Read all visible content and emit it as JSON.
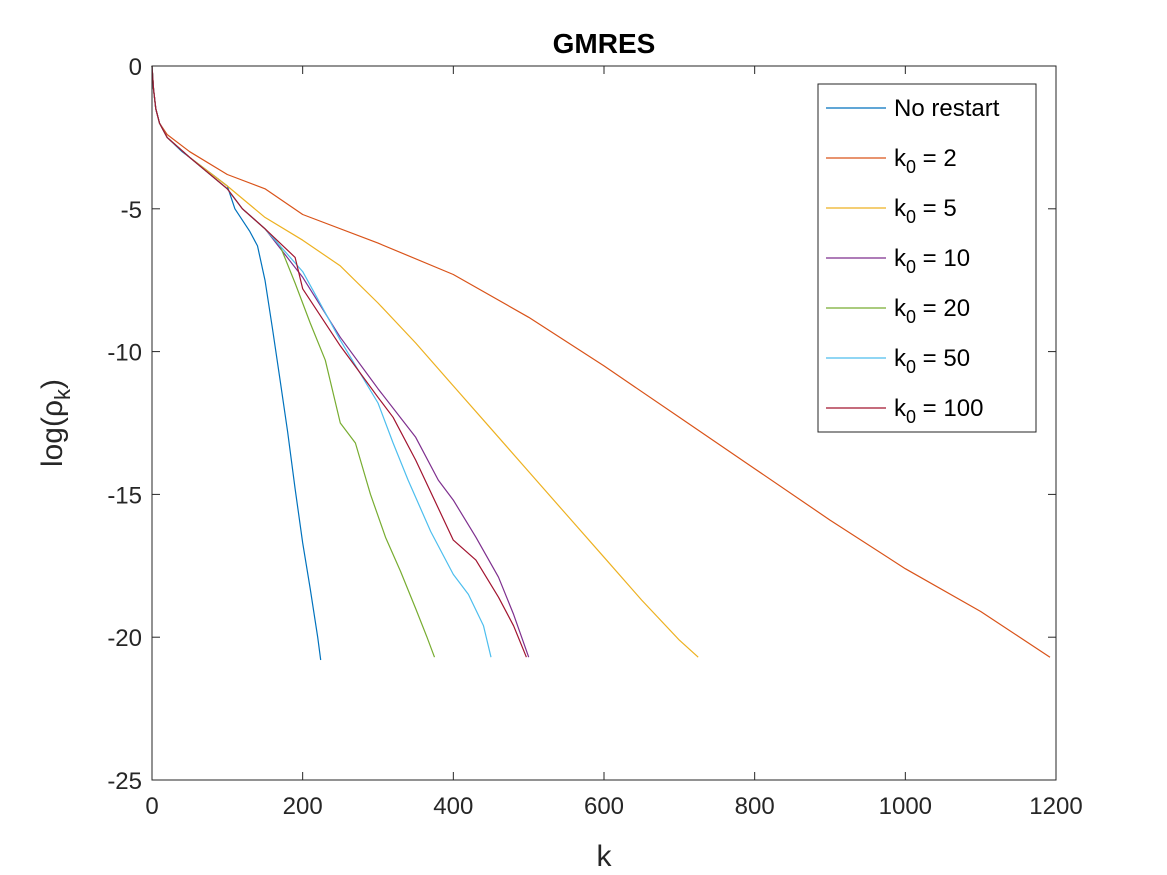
{
  "chart_data": {
    "type": "line",
    "title": "GMRES",
    "xlabel": "k",
    "ylabel": "log(ρ_k)",
    "xlim": [
      0,
      1200
    ],
    "ylim": [
      -25,
      0
    ],
    "xticks": [
      "0",
      "200",
      "400",
      "600",
      "800",
      "1000",
      "1200"
    ],
    "yticks": [
      "0",
      "-5",
      "-10",
      "-15",
      "-20",
      "-25"
    ],
    "legend_position": "top-right",
    "grid": false,
    "series": [
      {
        "name": "No restart",
        "color": "#0072bd",
        "x": [
          0,
          2,
          5,
          10,
          20,
          40,
          60,
          80,
          100,
          110,
          120,
          130,
          140,
          150,
          160,
          170,
          180,
          190,
          200,
          210,
          220,
          224
        ],
        "y": [
          0,
          -0.8,
          -1.5,
          -2.0,
          -2.5,
          -3.0,
          -3.4,
          -3.8,
          -4.2,
          -5.0,
          -5.4,
          -5.8,
          -6.3,
          -7.5,
          -9.2,
          -11.0,
          -12.8,
          -14.8,
          -16.7,
          -18.3,
          -20.0,
          -20.8
        ]
      },
      {
        "name": "k_0 = 2",
        "label_base": "k",
        "label_sub": "0",
        "label_rest": " = 2",
        "color": "#d95319",
        "x": [
          0,
          2,
          5,
          10,
          20,
          50,
          100,
          150,
          200,
          300,
          400,
          500,
          600,
          700,
          800,
          900,
          1000,
          1100,
          1192
        ],
        "y": [
          0,
          -0.8,
          -1.5,
          -2.0,
          -2.4,
          -3.0,
          -3.8,
          -4.3,
          -5.2,
          -6.2,
          -7.3,
          -8.8,
          -10.5,
          -12.3,
          -14.1,
          -15.9,
          -17.6,
          -19.1,
          -20.7
        ]
      },
      {
        "name": "k_0 = 5",
        "label_base": "k",
        "label_sub": "0",
        "label_rest": " = 5",
        "color": "#edb120",
        "x": [
          0,
          2,
          5,
          10,
          20,
          50,
          100,
          150,
          200,
          250,
          300,
          350,
          400,
          450,
          500,
          550,
          600,
          650,
          700,
          725
        ],
        "y": [
          0,
          -0.8,
          -1.5,
          -2.0,
          -2.5,
          -3.2,
          -4.2,
          -5.3,
          -6.1,
          -7.0,
          -8.3,
          -9.7,
          -11.2,
          -12.7,
          -14.2,
          -15.7,
          -17.2,
          -18.7,
          -20.1,
          -20.7
        ]
      },
      {
        "name": "k_0 = 10",
        "label_base": "k",
        "label_sub": "0",
        "label_rest": " = 10",
        "color": "#7e2f8e",
        "x": [
          0,
          2,
          5,
          10,
          20,
          50,
          100,
          120,
          150,
          200,
          250,
          300,
          350,
          380,
          400,
          430,
          460,
          480,
          500
        ],
        "y": [
          0,
          -0.8,
          -1.5,
          -2.0,
          -2.5,
          -3.2,
          -4.3,
          -5.0,
          -5.7,
          -7.4,
          -9.5,
          -11.3,
          -13.0,
          -14.5,
          -15.2,
          -16.5,
          -17.9,
          -19.2,
          -20.7
        ]
      },
      {
        "name": "k_0 = 20",
        "label_base": "k",
        "label_sub": "0",
        "label_rest": " = 20",
        "color": "#77ac30",
        "x": [
          0,
          2,
          5,
          10,
          20,
          50,
          100,
          120,
          150,
          170,
          190,
          210,
          230,
          250,
          270,
          290,
          310,
          330,
          350,
          365,
          375
        ],
        "y": [
          0,
          -0.8,
          -1.5,
          -2.0,
          -2.5,
          -3.2,
          -4.3,
          -5.0,
          -5.7,
          -6.3,
          -7.6,
          -9.0,
          -10.3,
          -12.5,
          -13.2,
          -15.0,
          -16.5,
          -17.7,
          -19.0,
          -20.0,
          -20.7
        ]
      },
      {
        "name": "k_0 = 50",
        "label_base": "k",
        "label_sub": "0",
        "label_rest": " = 50",
        "color": "#4dbeee",
        "x": [
          0,
          2,
          5,
          10,
          20,
          50,
          100,
          120,
          150,
          200,
          250,
          300,
          320,
          340,
          370,
          400,
          420,
          440,
          450
        ],
        "y": [
          0,
          -0.8,
          -1.5,
          -2.0,
          -2.5,
          -3.2,
          -4.3,
          -5.0,
          -5.7,
          -7.2,
          -9.6,
          -11.8,
          -13.2,
          -14.5,
          -16.3,
          -17.8,
          -18.5,
          -19.6,
          -20.7
        ]
      },
      {
        "name": "k_0 = 100",
        "label_base": "k",
        "label_sub": "0",
        "label_rest": " = 100",
        "color": "#a2142f",
        "x": [
          0,
          2,
          5,
          10,
          20,
          50,
          100,
          120,
          150,
          190,
          200,
          250,
          300,
          320,
          350,
          400,
          430,
          460,
          480,
          497
        ],
        "y": [
          0,
          -0.8,
          -1.5,
          -2.0,
          -2.5,
          -3.2,
          -4.3,
          -5.0,
          -5.7,
          -6.7,
          -7.8,
          -9.8,
          -11.6,
          -12.3,
          -13.8,
          -16.6,
          -17.3,
          -18.6,
          -19.6,
          -20.7
        ]
      }
    ]
  }
}
